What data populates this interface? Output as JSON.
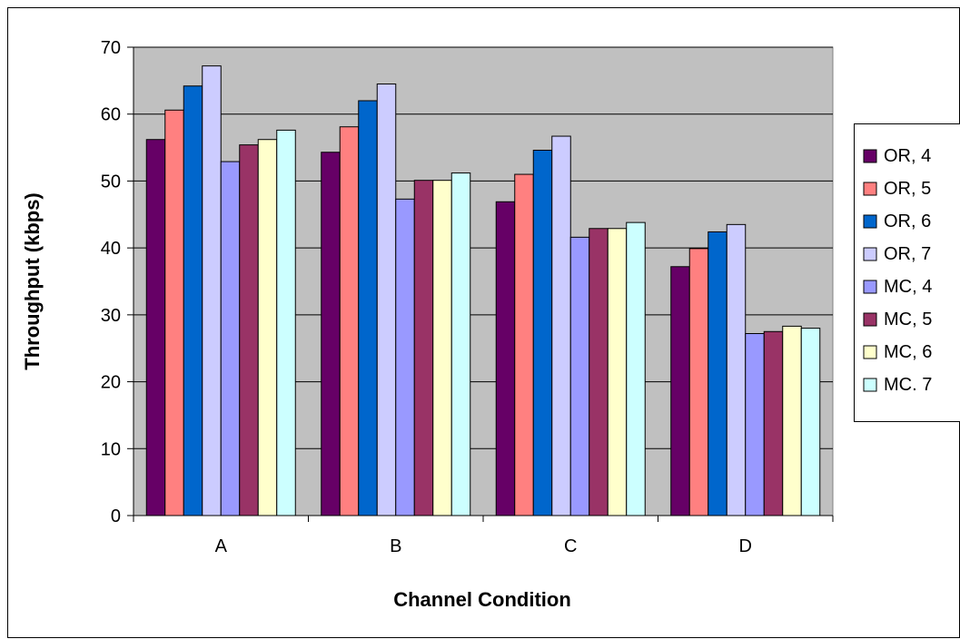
{
  "chart_data": {
    "type": "bar",
    "title": "",
    "xlabel": "Channel Condition",
    "ylabel": "Throughput (kbps)",
    "ylim": [
      0,
      70
    ],
    "yticks": [
      "0",
      "10",
      "20",
      "30",
      "40",
      "50",
      "60",
      "70"
    ],
    "categories": [
      "A",
      "B",
      "C",
      "D"
    ],
    "grid": "horizontal major gridlines",
    "plot_background": "#c0c0c0",
    "legend_position": "right",
    "series": [
      {
        "name": "OR, 4",
        "color": "#660066",
        "values": [
          56.2,
          54.3,
          46.9,
          37.2
        ]
      },
      {
        "name": "OR, 5",
        "color": "#ff8080",
        "values": [
          60.6,
          58.1,
          51.0,
          39.9
        ]
      },
      {
        "name": "OR, 6",
        "color": "#0066cc",
        "values": [
          64.2,
          62.0,
          54.6,
          42.4
        ]
      },
      {
        "name": "OR, 7",
        "color": "#ccccff",
        "values": [
          67.2,
          64.5,
          56.7,
          43.5
        ]
      },
      {
        "name": "MC, 4",
        "color": "#9999ff",
        "values": [
          52.9,
          47.3,
          41.6,
          27.2
        ]
      },
      {
        "name": "MC, 5",
        "color": "#993366",
        "values": [
          55.4,
          50.1,
          42.9,
          27.5
        ]
      },
      {
        "name": "MC, 6",
        "color": "#ffffcc",
        "values": [
          56.2,
          50.1,
          42.9,
          28.3
        ]
      },
      {
        "name": "MC. 7",
        "color": "#ccffff",
        "values": [
          57.6,
          51.2,
          43.8,
          28.0
        ]
      }
    ]
  }
}
